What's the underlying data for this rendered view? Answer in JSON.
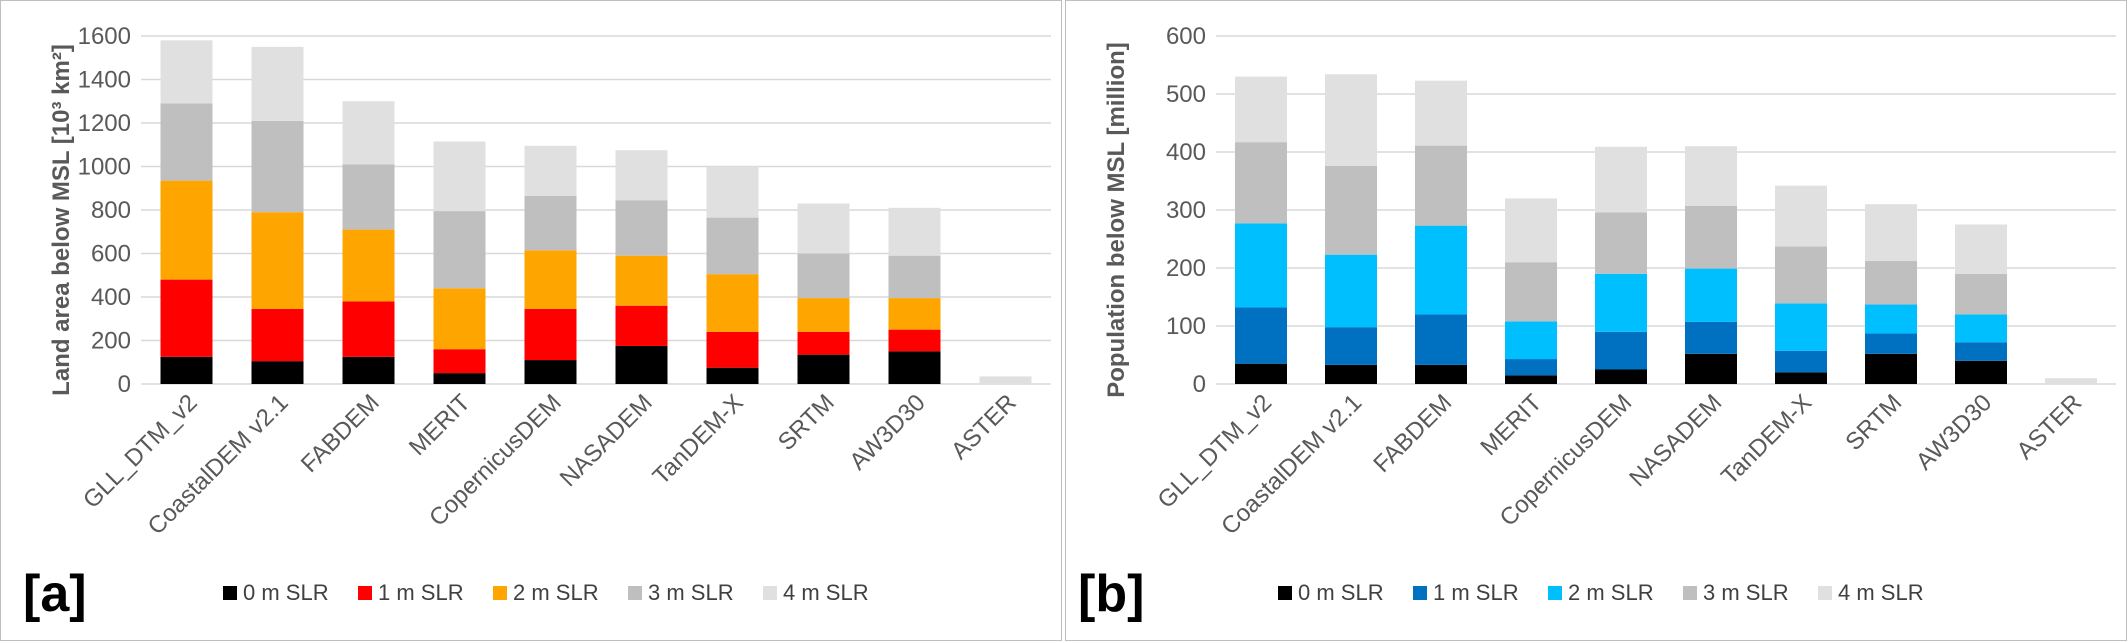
{
  "chart_data": [
    {
      "type": "bar",
      "stacked": true,
      "panel_label": "[a]",
      "ylabel": "Land area below MSL [10³ km²]",
      "ylim": [
        0,
        1600
      ],
      "yticks": [
        0,
        200,
        400,
        600,
        800,
        1000,
        1200,
        1400,
        1600
      ],
      "grid": true,
      "legend_position": "bottom",
      "categories": [
        "GLL_DTM_v2",
        "CoastalDEM v2.1",
        "FABDEM",
        "MERIT",
        "CopernicusDEM",
        "NASADEM",
        "TanDEM-X",
        "SRTM",
        "AW3D30",
        "ASTER"
      ],
      "series": [
        {
          "name": "0 m SLR",
          "color": "#000000",
          "values": [
            125,
            105,
            125,
            50,
            110,
            175,
            75,
            135,
            150,
            0
          ]
        },
        {
          "name": "1 m SLR",
          "color": "#ff0000",
          "values": [
            355,
            240,
            255,
            110,
            235,
            185,
            165,
            105,
            100,
            0
          ]
        },
        {
          "name": "2 m SLR",
          "color": "#ffa500",
          "values": [
            455,
            445,
            330,
            280,
            270,
            230,
            265,
            155,
            145,
            0
          ]
        },
        {
          "name": "3 m SLR",
          "color": "#bfbfbf",
          "values": [
            355,
            420,
            300,
            355,
            250,
            255,
            260,
            205,
            195,
            0
          ]
        },
        {
          "name": "4 m SLR",
          "color": "#e0e0e0",
          "values": [
            290,
            340,
            290,
            320,
            230,
            230,
            235,
            230,
            220,
            35
          ]
        }
      ]
    },
    {
      "type": "bar",
      "stacked": true,
      "panel_label": "[b]",
      "ylabel": "Population below MSL [million]",
      "ylim": [
        0,
        600
      ],
      "yticks": [
        0,
        100,
        200,
        300,
        400,
        500,
        600
      ],
      "grid": true,
      "legend_position": "bottom",
      "categories": [
        "GLL_DTM_v2",
        "CoastalDEM v2.1",
        "FABDEM",
        "MERIT",
        "CopernicusDEM",
        "NASADEM",
        "TanDEM-X",
        "SRTM",
        "AW3D30",
        "ASTER"
      ],
      "series": [
        {
          "name": "0 m SLR",
          "color": "#000000",
          "values": [
            35,
            33,
            33,
            15,
            25,
            52,
            20,
            52,
            40,
            0
          ]
        },
        {
          "name": "1 m SLR",
          "color": "#0070c0",
          "values": [
            97,
            65,
            87,
            28,
            65,
            55,
            37,
            35,
            32,
            0
          ]
        },
        {
          "name": "2 m SLR",
          "color": "#00bfff",
          "values": [
            145,
            125,
            153,
            65,
            100,
            92,
            82,
            50,
            48,
            0
          ]
        },
        {
          "name": "3 m SLR",
          "color": "#bfbfbf",
          "values": [
            140,
            153,
            138,
            102,
            106,
            108,
            98,
            75,
            70,
            0
          ]
        },
        {
          "name": "4 m SLR",
          "color": "#e0e0e0",
          "values": [
            113,
            158,
            112,
            110,
            113,
            103,
            105,
            98,
            85,
            10
          ]
        }
      ]
    }
  ]
}
